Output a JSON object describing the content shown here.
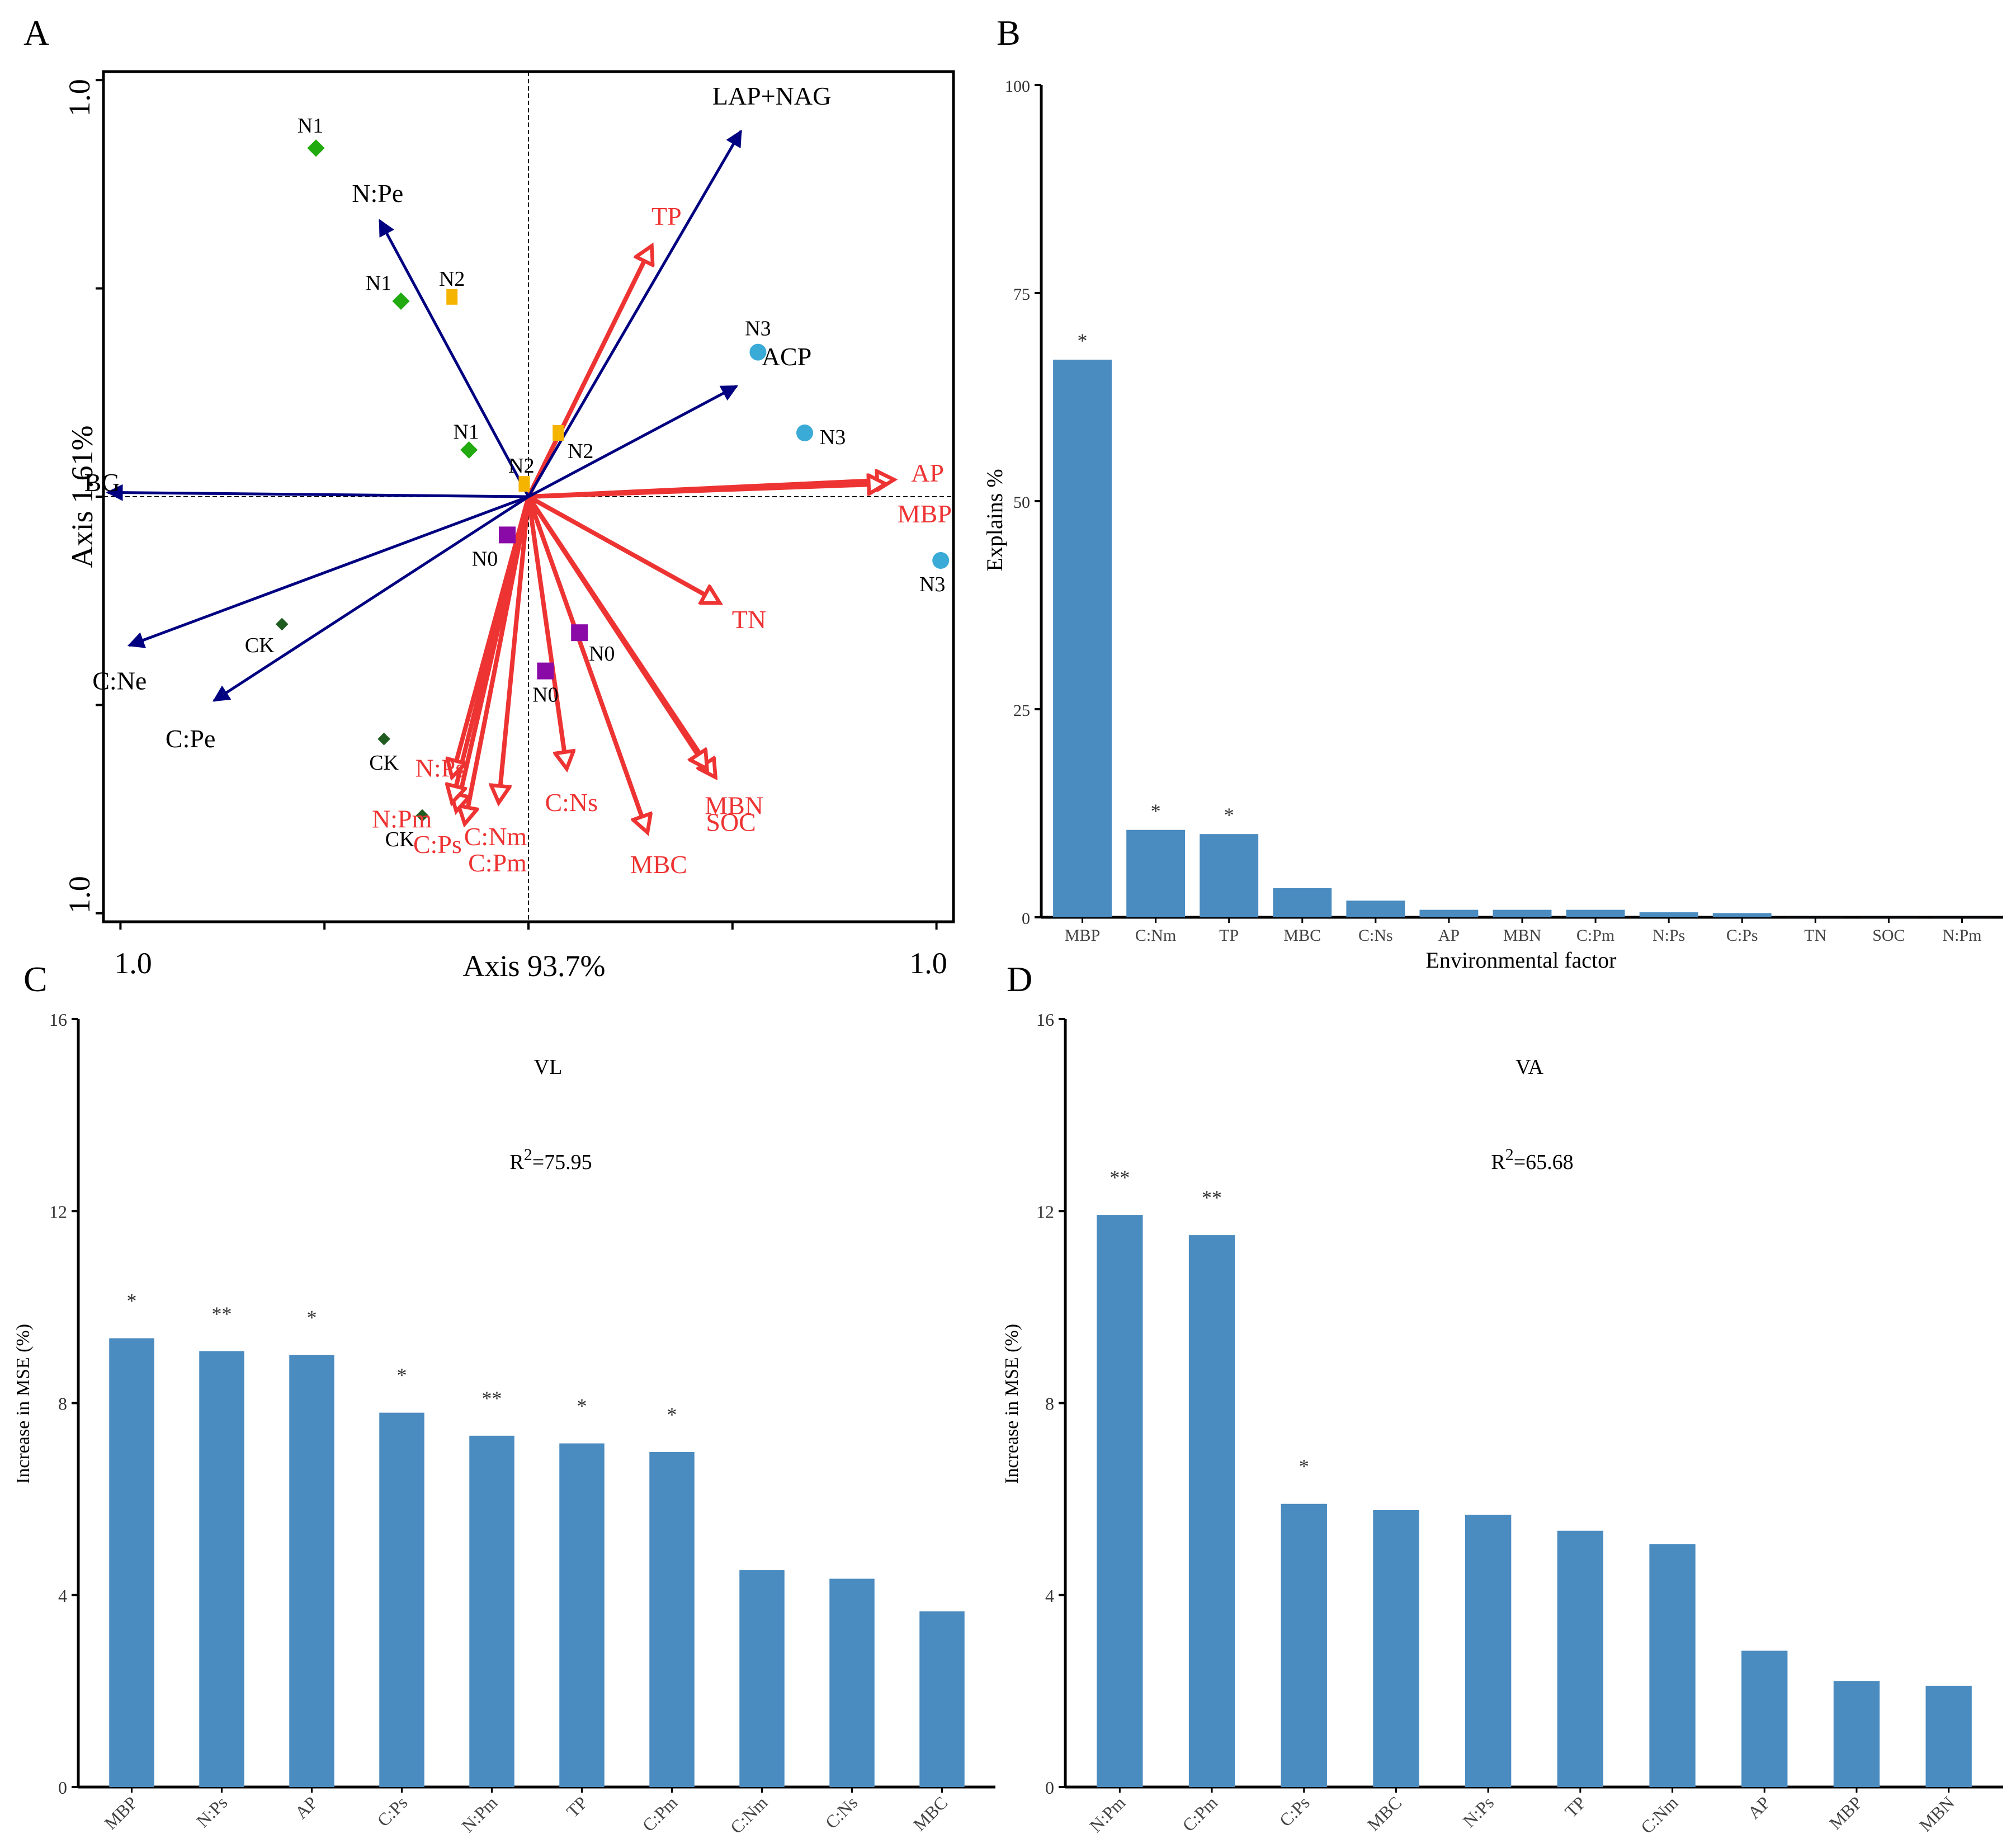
{
  "colors": {
    "bar": "#4a8bc0",
    "enzyme_arrow": "#000080",
    "env_arrow": "#ee3333",
    "n1": "#22aa11",
    "n2": "#f5b400",
    "n3": "#3aaad6",
    "n0": "#8a0aa8",
    "ck": "#1f5c1f",
    "axis": "#000000"
  },
  "chart_data": [
    {
      "panel": "A",
      "type": "scatter",
      "subtype": "rda_biplot",
      "xlabel": "Axis 93.7%",
      "ylabel": "Axis 1.61%",
      "xlim": [
        -1.0,
        1.0
      ],
      "ylim": [
        -1.0,
        1.0
      ],
      "x_tick_labels": {
        "left": "1.0",
        "right": "1.0"
      },
      "y_tick_labels": {
        "top": "1.0",
        "bottom": "1.0"
      },
      "points": [
        {
          "label": "N1",
          "group": "N1",
          "x": -0.5,
          "y": 0.82
        },
        {
          "label": "N1",
          "group": "N1",
          "x": -0.3,
          "y": 0.46
        },
        {
          "label": "N1",
          "group": "N1",
          "x": -0.14,
          "y": 0.11
        },
        {
          "label": "N2",
          "group": "N2",
          "x": -0.18,
          "y": 0.47
        },
        {
          "label": "N2",
          "group": "N2",
          "x": 0.07,
          "y": 0.15
        },
        {
          "label": "N2",
          "group": "N2",
          "x": -0.01,
          "y": 0.03
        },
        {
          "label": "N3",
          "group": "N3",
          "x": 0.54,
          "y": 0.34
        },
        {
          "label": "N3",
          "group": "N3",
          "x": 0.65,
          "y": 0.15
        },
        {
          "label": "N3",
          "group": "N3",
          "x": 0.97,
          "y": -0.15
        },
        {
          "label": "N0",
          "group": "N0",
          "x": -0.05,
          "y": -0.09
        },
        {
          "label": "N0",
          "group": "N0",
          "x": 0.12,
          "y": -0.32
        },
        {
          "label": "N0",
          "group": "N0",
          "x": 0.04,
          "y": -0.41
        },
        {
          "label": "CK",
          "group": "CK",
          "x": -0.58,
          "y": -0.3
        },
        {
          "label": "CK",
          "group": "CK",
          "x": -0.34,
          "y": -0.57
        },
        {
          "label": "CK",
          "group": "CK",
          "x": -0.25,
          "y": -0.75
        }
      ],
      "enzyme_vectors": [
        {
          "label": "LAP+NAG",
          "x": 0.5,
          "y": 0.86
        },
        {
          "label": "N:Pe",
          "x": -0.35,
          "y": 0.65
        },
        {
          "label": "ACP",
          "x": 0.49,
          "y": 0.26
        },
        {
          "label": "BG",
          "x": -0.99,
          "y": 0.01
        },
        {
          "label": "C:Ne",
          "x": -0.94,
          "y": -0.35
        },
        {
          "label": "C:Pe",
          "x": -0.74,
          "y": -0.48
        }
      ],
      "env_vectors": [
        {
          "label": "TP",
          "x": 0.29,
          "y": 0.59
        },
        {
          "label": "AP",
          "x": 0.86,
          "y": 0.04
        },
        {
          "label": "MBP",
          "x": 0.84,
          "y": 0.03
        },
        {
          "label": "TN",
          "x": 0.45,
          "y": -0.25
        },
        {
          "label": "MBN",
          "x": 0.44,
          "y": -0.66
        },
        {
          "label": "SOC",
          "x": 0.42,
          "y": -0.64
        },
        {
          "label": "MBC",
          "x": 0.28,
          "y": -0.79
        },
        {
          "label": "C:Ns",
          "x": 0.09,
          "y": -0.64
        },
        {
          "label": "C:Nm",
          "x": -0.07,
          "y": -0.72
        },
        {
          "label": "C:Pm",
          "x": -0.15,
          "y": -0.77
        },
        {
          "label": "C:Ps",
          "x": -0.17,
          "y": -0.74
        },
        {
          "label": "N:Pm",
          "x": -0.18,
          "y": -0.72
        },
        {
          "label": "N:Ps",
          "x": -0.18,
          "y": -0.66
        }
      ],
      "env_text": [
        {
          "text": "TP",
          "vx": 0.29,
          "vy": 0.59
        },
        {
          "text": "AP",
          "vx": 0.86,
          "vy": 0.04
        },
        {
          "text": "MBP",
          "vx": 0.84,
          "vy": 0.03
        },
        {
          "text": "TN",
          "vx": 0.45,
          "vy": -0.25
        },
        {
          "text": "MBN",
          "vx": 0.44,
          "vy": -0.66
        },
        {
          "text": "SOC",
          "vx": 0.42,
          "vy": -0.64
        },
        {
          "text": "MBC",
          "vx": 0.28,
          "vy": -0.79
        },
        {
          "text": "C:Ns",
          "vx": 0.09,
          "vy": -0.64
        },
        {
          "text": "C:Nm",
          "vx": -0.07,
          "vy": -0.72
        },
        {
          "text": "C:Pm",
          "vx": -0.15,
          "vy": -0.77
        },
        {
          "text": "C:Ps",
          "vx": -0.17,
          "vy": -0.74
        },
        {
          "text": "N:Pm",
          "vx": -0.18,
          "vy": -0.72
        },
        {
          "text": "N:Ps",
          "vx": -0.18,
          "vy": -0.66
        }
      ]
    },
    {
      "panel": "B",
      "type": "bar",
      "xlabel": "Environmental factor",
      "ylabel": "Explains %",
      "ylim": [
        0,
        100
      ],
      "yticks": [
        0,
        25,
        50,
        75,
        100
      ],
      "categories": [
        "MBP",
        "C:Nm",
        "TP",
        "MBC",
        "C:Ns",
        "AP",
        "MBN",
        "C:Pm",
        "N:Ps",
        "C:Ps",
        "TN",
        "SOC",
        "N:Pm"
      ],
      "values": [
        67,
        10.5,
        10,
        3.5,
        2,
        0.9,
        0.9,
        0.9,
        0.6,
        0.5,
        0.05,
        0.05,
        0.05
      ],
      "significance": [
        "*",
        "*",
        "*",
        "",
        "",
        "",
        "",
        "",
        "",
        "",
        "",
        "",
        ""
      ]
    },
    {
      "panel": "C",
      "type": "bar",
      "title": "VL",
      "r2_prefix": "R",
      "r2_sup": "2",
      "r2_value": "=75.95",
      "ylabel": "Increase in MSE (%)",
      "ylim": [
        0,
        16
      ],
      "yticks": [
        0,
        4,
        8,
        12,
        16
      ],
      "categories": [
        "MBP",
        "N:Ps",
        "AP",
        "C:Ps",
        "N:Pm",
        "TP",
        "C:Pm",
        "C:Nm",
        "C:Ns",
        "MBC"
      ],
      "values": [
        9.35,
        9.08,
        9.0,
        7.8,
        7.32,
        7.16,
        6.98,
        4.52,
        4.34,
        3.66
      ],
      "significance": [
        "*",
        "**",
        "*",
        "*",
        "**",
        "*",
        "*",
        "",
        "",
        ""
      ]
    },
    {
      "panel": "D",
      "type": "bar",
      "title": "VA",
      "r2_prefix": "R",
      "r2_sup": "2",
      "r2_value": "=65.68",
      "ylabel": "Increase in MSE (%)",
      "ylim": [
        0,
        16
      ],
      "yticks": [
        0,
        4,
        8,
        12,
        16
      ],
      "categories": [
        "N:Pm",
        "C:Pm",
        "C:Ps",
        "MBC",
        "N:Ps",
        "TP",
        "C:Nm",
        "AP",
        "MBP",
        "MBN"
      ],
      "values": [
        11.92,
        11.5,
        5.9,
        5.77,
        5.67,
        5.34,
        5.06,
        2.84,
        2.21,
        2.11
      ],
      "significance": [
        "**",
        "**",
        "*",
        "",
        "",
        "",
        "",
        "",
        "",
        ""
      ]
    }
  ],
  "panel_letters": [
    "A",
    "B",
    "C",
    "D"
  ]
}
